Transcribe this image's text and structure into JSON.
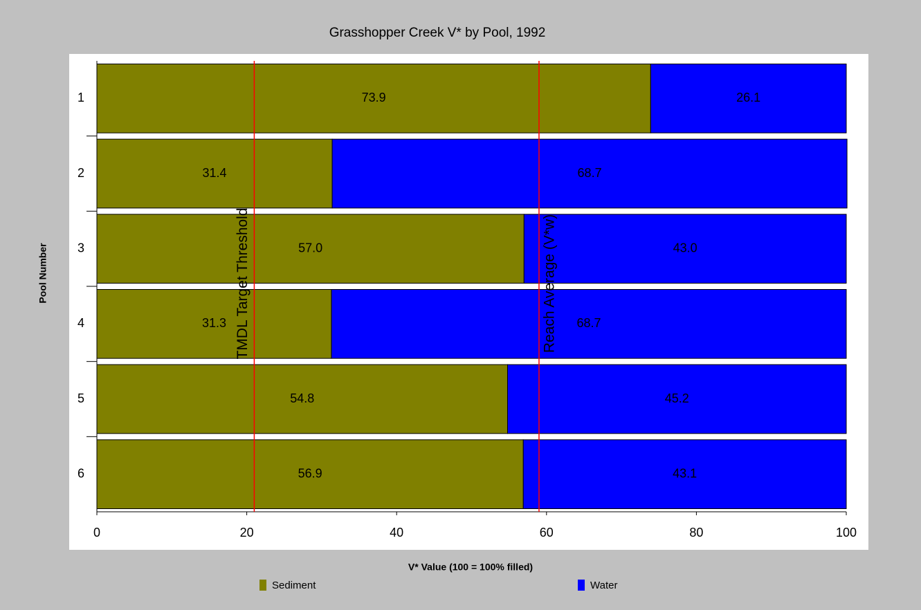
{
  "chart_data": {
    "type": "stacked_barh",
    "title": "Grasshopper Creek V* by Pool, 1992",
    "x_label": "V* Value (100 = 100% filled)",
    "y_label": "Pool Number",
    "categories": [
      "1",
      "2",
      "3",
      "4",
      "5",
      "6"
    ],
    "series": [
      {
        "name": "Sediment",
        "color": "#808000",
        "values": [
          73.9,
          31.4,
          57.0,
          31.3,
          54.8,
          56.9
        ],
        "value_labels": [
          "73.9",
          "31.4",
          "57.0",
          "31.3",
          "54.8",
          "56.9"
        ]
      },
      {
        "name": "Water",
        "color": "#0000ff",
        "values": [
          26.1,
          68.7,
          43.0,
          68.7,
          45.2,
          43.1
        ],
        "value_labels": [
          "26.1",
          "68.7",
          "43.0",
          "68.7",
          "45.2",
          "43.1"
        ]
      }
    ],
    "xlim": [
      0,
      100
    ],
    "xticks": [
      0,
      20,
      40,
      60,
      80,
      100
    ],
    "reference_lines": [
      {
        "label": "TMDL Target Threshold",
        "value": 21,
        "color": "#ff0000"
      },
      {
        "label": "Reach Average (V*w)",
        "value": 59,
        "color": "#ff0000"
      }
    ],
    "legend": "bottom"
  }
}
